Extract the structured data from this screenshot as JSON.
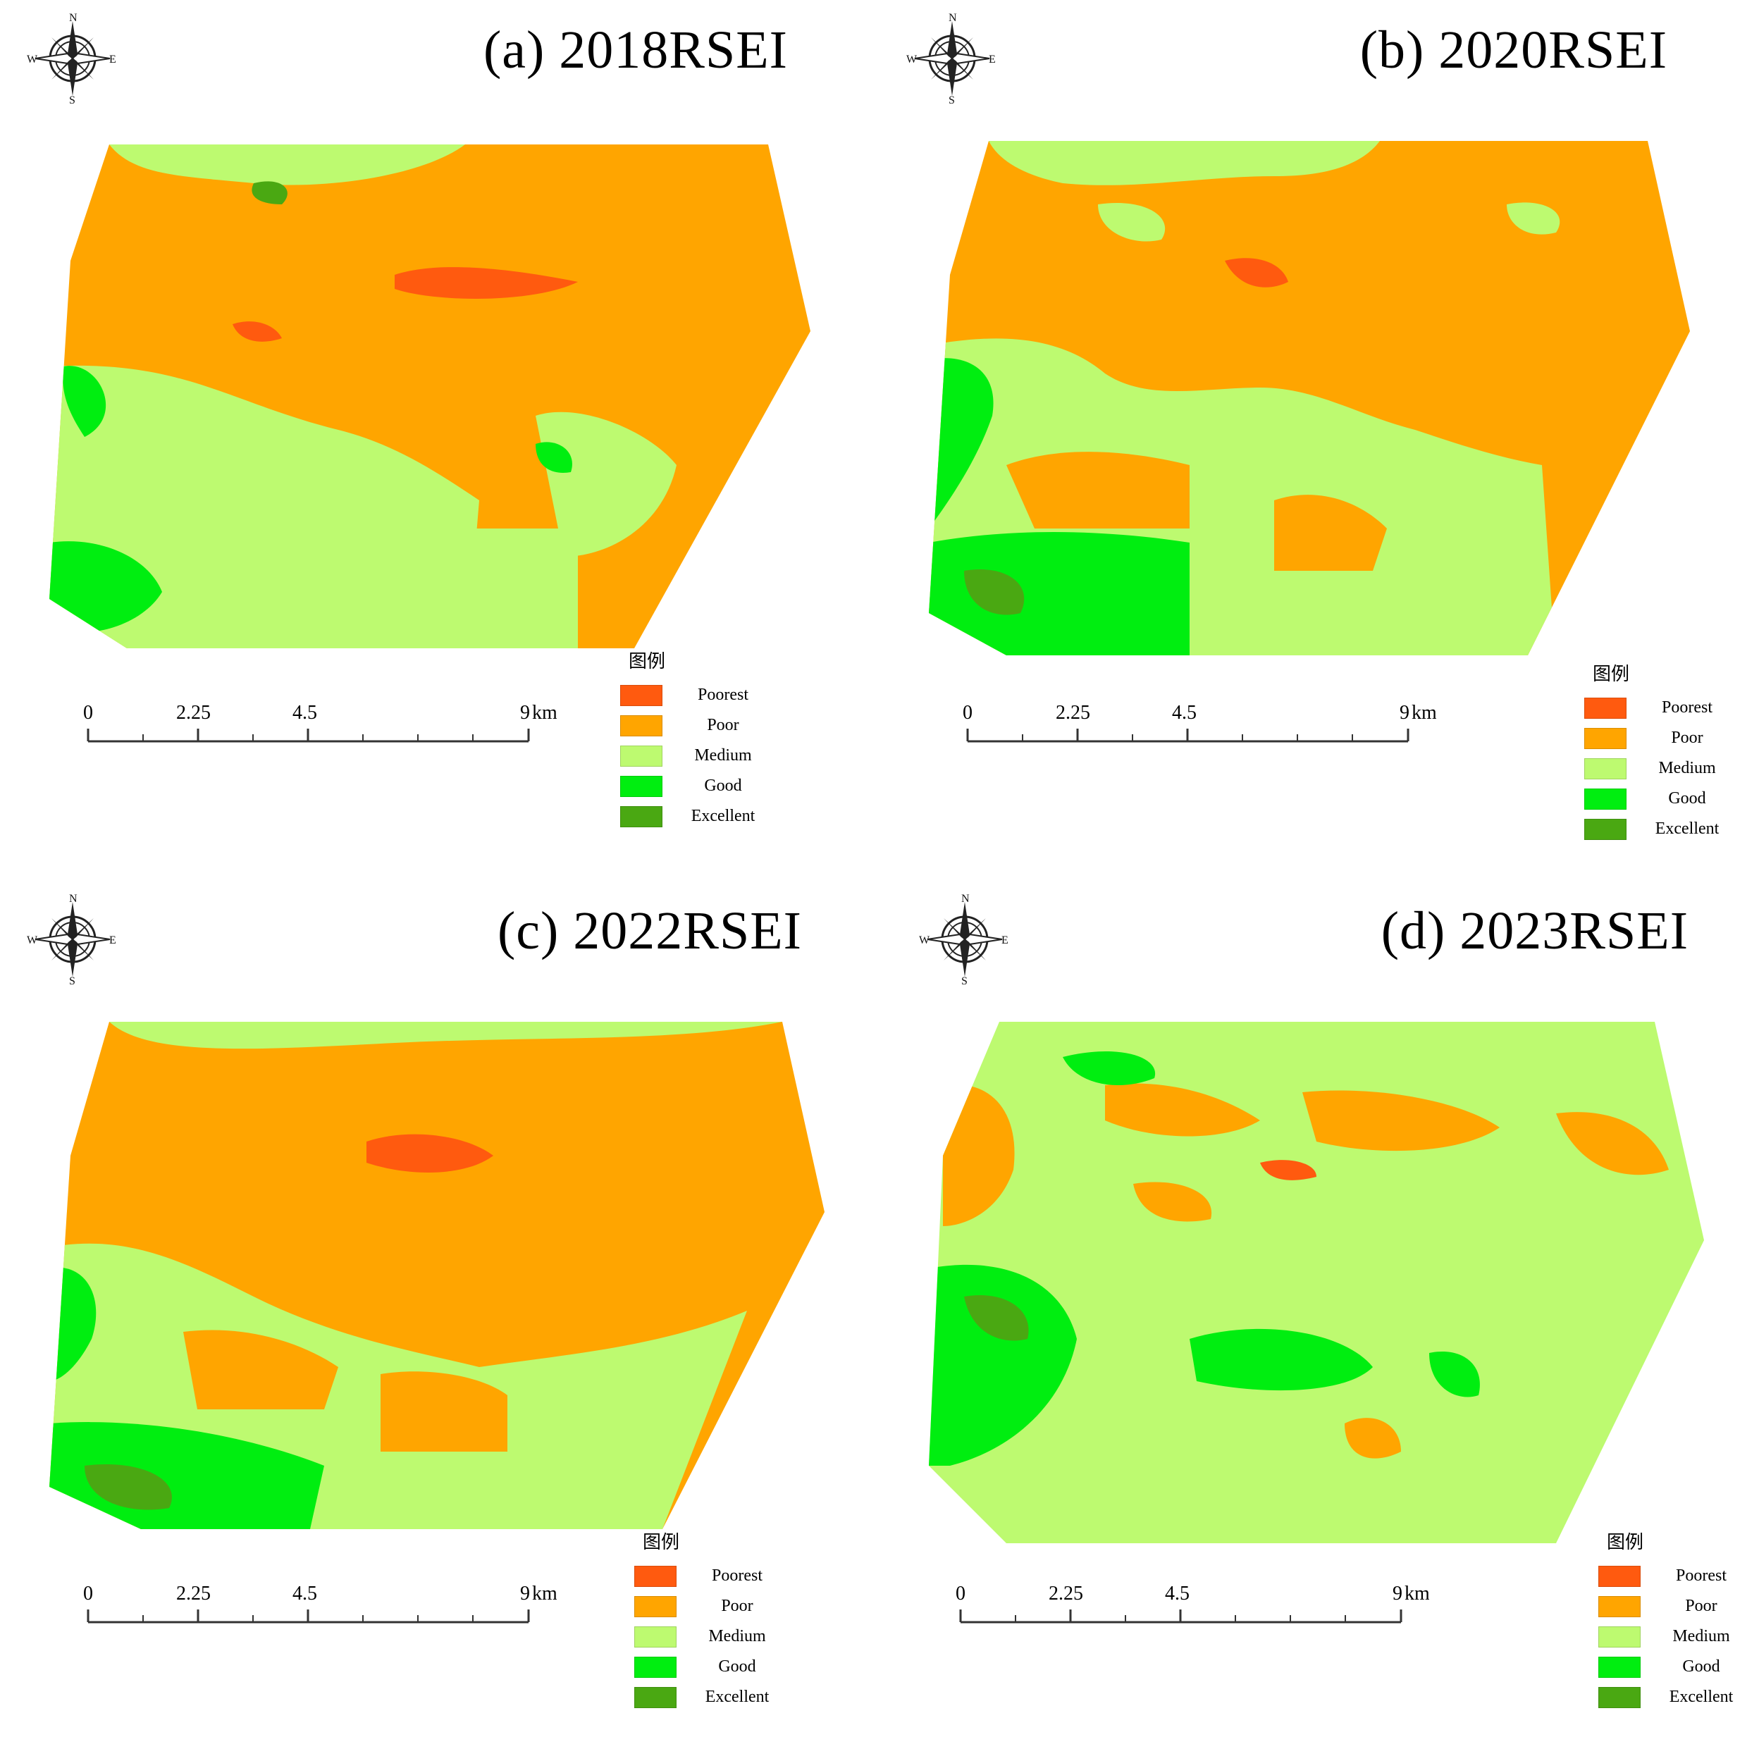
{
  "panels": [
    {
      "title": "(a) 2018RSEI",
      "dominant": "poor"
    },
    {
      "title": "(b) 2020RSEI",
      "dominant": "poor"
    },
    {
      "title": "(c) 2022RSEI",
      "dominant": "poor"
    },
    {
      "title": "(d) 2023RSEI",
      "dominant": "medium"
    }
  ],
  "compass": {
    "north": "N",
    "south": "S",
    "east": "E",
    "west": "W"
  },
  "scalebar": {
    "ticks": [
      "0",
      "2.25",
      "4.5",
      "9"
    ],
    "unit": "km"
  },
  "legend": {
    "title": "图例",
    "items": [
      {
        "label": "Poorest",
        "color": "#ff5a0f"
      },
      {
        "label": "Poor",
        "color": "#ffa500"
      },
      {
        "label": "Medium",
        "color": "#bdfa70"
      },
      {
        "label": "Good",
        "color": "#00ee10"
      },
      {
        "label": "Excellent",
        "color": "#4aa812"
      }
    ]
  }
}
